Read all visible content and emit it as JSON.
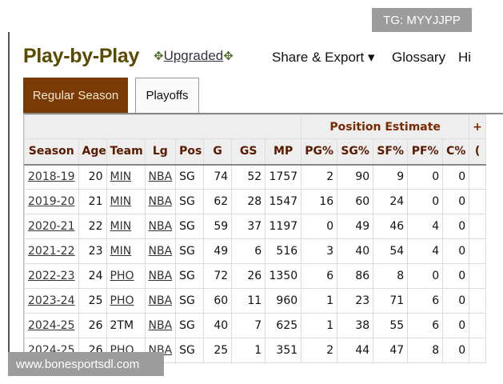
{
  "watermark_top": "TG: MYYJJPP",
  "watermark_bottom": "www.bonesportsdl.com",
  "header": {
    "title": "Play-by-Play",
    "upgraded": "Upgraded",
    "share": "Share & Export ▾",
    "glossary": "Glossary",
    "more": "Hi"
  },
  "tabs": [
    "Regular Season",
    "Playoffs"
  ],
  "table": {
    "group_header": "Position Estimate",
    "group_next": "+",
    "columns": [
      "Season",
      "Age",
      "Team",
      "Lg",
      "Pos",
      "G",
      "GS",
      "MP",
      "PG%",
      "SG%",
      "SF%",
      "PF%",
      "C%",
      "("
    ],
    "rows": [
      [
        "2018-19",
        "20",
        "MIN",
        "NBA",
        "SG",
        "74",
        "52",
        "1757",
        "2",
        "90",
        "9",
        "0",
        "0"
      ],
      [
        "2019-20",
        "21",
        "MIN",
        "NBA",
        "SG",
        "62",
        "28",
        "1547",
        "16",
        "60",
        "24",
        "0",
        "0"
      ],
      [
        "2020-21",
        "22",
        "MIN",
        "NBA",
        "SG",
        "59",
        "37",
        "1197",
        "0",
        "49",
        "46",
        "4",
        "0"
      ],
      [
        "2021-22",
        "23",
        "MIN",
        "NBA",
        "SG",
        "49",
        "6",
        "516",
        "3",
        "40",
        "54",
        "4",
        "0"
      ],
      [
        "2022-23",
        "24",
        "PHO",
        "NBA",
        "SG",
        "72",
        "26",
        "1350",
        "6",
        "86",
        "8",
        "0",
        "0"
      ],
      [
        "2023-24",
        "25",
        "PHO",
        "NBA",
        "SG",
        "60",
        "11",
        "960",
        "1",
        "23",
        "71",
        "6",
        "0"
      ],
      [
        "2024-25",
        "26",
        "2TM",
        "NBA",
        "SG",
        "40",
        "7",
        "625",
        "1",
        "38",
        "55",
        "6",
        "0"
      ],
      [
        "2024-25",
        "26",
        "PHO",
        "NBA",
        "SG",
        "25",
        "1",
        "351",
        "2",
        "44",
        "47",
        "8",
        "0"
      ]
    ]
  }
}
